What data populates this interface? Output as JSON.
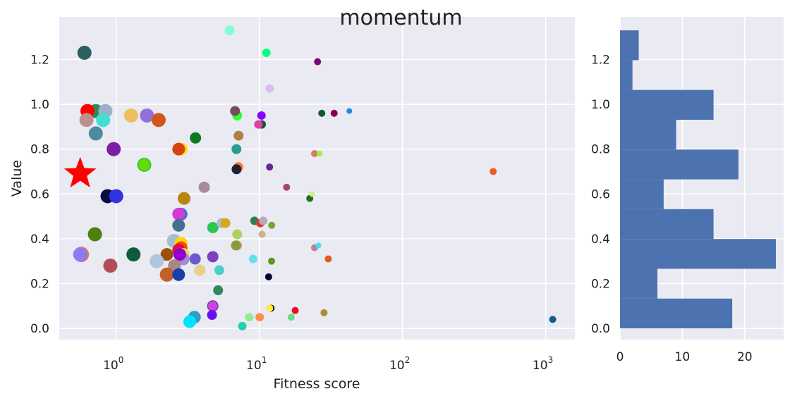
{
  "figure": {
    "title": "momentum"
  },
  "chart_data": [
    {
      "type": "scatter",
      "xlabel": "Fitness score",
      "ylabel": "Value",
      "xscale": "log",
      "xlim": [
        0.4,
        1600
      ],
      "ylim": [
        -0.05,
        1.39
      ],
      "xticks": [
        {
          "value": 1,
          "base": "10",
          "exp": "0"
        },
        {
          "value": 10,
          "base": "10",
          "exp": "1"
        },
        {
          "value": 100,
          "base": "10",
          "exp": "2"
        },
        {
          "value": 1000,
          "base": "10",
          "exp": "3"
        }
      ],
      "yticks": [
        {
          "value": 0.0,
          "label": "0.0"
        },
        {
          "value": 0.2,
          "label": "0.2"
        },
        {
          "value": 0.4,
          "label": "0.4"
        },
        {
          "value": 0.6,
          "label": "0.6"
        },
        {
          "value": 0.8,
          "label": "0.8"
        },
        {
          "value": 1.0,
          "label": "1.0"
        },
        {
          "value": 1.2,
          "label": "1.2"
        }
      ],
      "grid": true,
      "background": "#eaeaf2",
      "highlight": {
        "x": 0.56,
        "y": 0.69,
        "marker": "star",
        "color": "#ff0000"
      },
      "points": [
        {
          "x": 0.6,
          "y": 1.23,
          "s": 10,
          "c": "#2f5f5f"
        },
        {
          "x": 6.2,
          "y": 1.33,
          "s": 7,
          "c": "#7fffd4"
        },
        {
          "x": 11.2,
          "y": 1.23,
          "s": 6,
          "c": "#00ff7f"
        },
        {
          "x": 25.5,
          "y": 1.19,
          "s": 5,
          "c": "#800080"
        },
        {
          "x": 11.8,
          "y": 1.07,
          "s": 6,
          "c": "#d8bfef"
        },
        {
          "x": 0.72,
          "y": 0.97,
          "s": 10,
          "c": "#2e8b57"
        },
        {
          "x": 0.84,
          "y": 0.97,
          "s": 10,
          "c": "#9bb0cb"
        },
        {
          "x": 0.63,
          "y": 0.97,
          "s": 10,
          "c": "#ff0000"
        },
        {
          "x": 0.62,
          "y": 0.93,
          "s": 10,
          "c": "#bc8f8f"
        },
        {
          "x": 0.81,
          "y": 0.93,
          "s": 10,
          "c": "#40e0d0"
        },
        {
          "x": 0.72,
          "y": 0.87,
          "s": 10,
          "c": "#4c8aa0"
        },
        {
          "x": 1.27,
          "y": 0.95,
          "s": 10,
          "c": "#f0be60"
        },
        {
          "x": 1.64,
          "y": 0.95,
          "s": 10,
          "c": "#9370db"
        },
        {
          "x": 1.98,
          "y": 0.93,
          "s": 10,
          "c": "#d2561c"
        },
        {
          "x": 0.96,
          "y": 0.8,
          "s": 10,
          "c": "#7b1fa2"
        },
        {
          "x": 1.57,
          "y": 0.73,
          "s": 10,
          "c": "#32cd32"
        },
        {
          "x": 1.57,
          "y": 0.73,
          "s": 8,
          "c": "#66dd00"
        },
        {
          "x": 0.87,
          "y": 0.59,
          "s": 10,
          "c": "#0b0b45"
        },
        {
          "x": 1.0,
          "y": 0.59,
          "s": 10,
          "c": "#3232e0"
        },
        {
          "x": 0.71,
          "y": 0.42,
          "s": 10,
          "c": "#4f7f0f"
        },
        {
          "x": 0.57,
          "y": 0.33,
          "s": 11,
          "c": "#e8735a"
        },
        {
          "x": 0.56,
          "y": 0.33,
          "s": 10,
          "c": "#8a7cf5"
        },
        {
          "x": 0.91,
          "y": 0.28,
          "s": 10,
          "c": "#b24c5a"
        },
        {
          "x": 1.32,
          "y": 0.33,
          "s": 10,
          "c": "#0e5c3a"
        },
        {
          "x": 2.84,
          "y": 0.8,
          "s": 9,
          "c": "#ffd700"
        },
        {
          "x": 2.73,
          "y": 0.8,
          "s": 9,
          "c": "#d8420c"
        },
        {
          "x": 3.58,
          "y": 0.85,
          "s": 8,
          "c": "#0e7a1b"
        },
        {
          "x": 2.98,
          "y": 0.58,
          "s": 9,
          "c": "#b8860b"
        },
        {
          "x": 4.12,
          "y": 0.63,
          "s": 8,
          "c": "#a88a9f"
        },
        {
          "x": 2.84,
          "y": 0.51,
          "s": 9,
          "c": "#3d6fd4"
        },
        {
          "x": 2.73,
          "y": 0.51,
          "s": 9,
          "c": "#d63ad6"
        },
        {
          "x": 2.73,
          "y": 0.46,
          "s": 9,
          "c": "#447090"
        },
        {
          "x": 2.53,
          "y": 0.39,
          "s": 10,
          "c": "#a3bfcd"
        },
        {
          "x": 2.84,
          "y": 0.38,
          "s": 9,
          "c": "#ffd700"
        },
        {
          "x": 2.84,
          "y": 0.36,
          "s": 9,
          "c": "#ff4500"
        },
        {
          "x": 2.73,
          "y": 0.35,
          "s": 9,
          "c": "#dc143c"
        },
        {
          "x": 2.26,
          "y": 0.33,
          "s": 9,
          "c": "#9d5108"
        },
        {
          "x": 2.94,
          "y": 0.33,
          "s": 9,
          "c": "#f0e040"
        },
        {
          "x": 2.94,
          "y": 0.31,
          "s": 9,
          "c": "#a78bd0"
        },
        {
          "x": 2.78,
          "y": 0.33,
          "s": 9,
          "c": "#9400d3"
        },
        {
          "x": 3.56,
          "y": 0.31,
          "s": 8,
          "c": "#6a5acd"
        },
        {
          "x": 1.92,
          "y": 0.3,
          "s": 10,
          "c": "#b0c4de"
        },
        {
          "x": 2.55,
          "y": 0.28,
          "s": 9,
          "c": "#a78888"
        },
        {
          "x": 3.84,
          "y": 0.26,
          "s": 8,
          "c": "#e6d08a"
        },
        {
          "x": 2.26,
          "y": 0.24,
          "s": 10,
          "c": "#c0602b"
        },
        {
          "x": 2.73,
          "y": 0.24,
          "s": 9,
          "c": "#1a3ea8"
        },
        {
          "x": 3.52,
          "y": 0.05,
          "s": 9,
          "c": "#2f9ec0"
        },
        {
          "x": 3.26,
          "y": 0.03,
          "s": 9,
          "c": "#00e5ff"
        },
        {
          "x": 4.73,
          "y": 0.1,
          "s": 8,
          "c": "#3b3b8a"
        },
        {
          "x": 4.73,
          "y": 0.1,
          "s": 7,
          "c": "#cc44dd"
        },
        {
          "x": 4.67,
          "y": 0.06,
          "s": 7,
          "c": "#6610f2"
        },
        {
          "x": 5.15,
          "y": 0.17,
          "s": 7,
          "c": "#2e8b57"
        },
        {
          "x": 5.25,
          "y": 0.26,
          "s": 7,
          "c": "#48d1cc"
        },
        {
          "x": 4.73,
          "y": 0.32,
          "s": 8,
          "c": "#7b3fbf"
        },
        {
          "x": 4.73,
          "y": 0.45,
          "s": 8,
          "c": "#28c850"
        },
        {
          "x": 5.45,
          "y": 0.47,
          "s": 7,
          "c": "#aabbcc"
        },
        {
          "x": 5.79,
          "y": 0.47,
          "s": 7,
          "c": "#daa520"
        },
        {
          "x": 6.98,
          "y": 0.37,
          "s": 7,
          "c": "#e0a060"
        },
        {
          "x": 6.86,
          "y": 0.37,
          "s": 7,
          "c": "#8a9a40"
        },
        {
          "x": 7.0,
          "y": 0.42,
          "s": 7,
          "c": "#b0d060"
        },
        {
          "x": 7.13,
          "y": 0.72,
          "s": 7,
          "c": "#ff7f24"
        },
        {
          "x": 6.93,
          "y": 0.71,
          "s": 7,
          "c": "#1f1f2f"
        },
        {
          "x": 6.92,
          "y": 0.8,
          "s": 7,
          "c": "#2a9d8f"
        },
        {
          "x": 7.16,
          "y": 0.86,
          "s": 7,
          "c": "#b08040"
        },
        {
          "x": 7.0,
          "y": 0.95,
          "s": 7,
          "c": "#32ff32"
        },
        {
          "x": 6.76,
          "y": 0.97,
          "s": 7,
          "c": "#7a4a5a"
        },
        {
          "x": 10.35,
          "y": 0.95,
          "s": 6,
          "c": "#8a00ff"
        },
        {
          "x": 10.38,
          "y": 0.91,
          "s": 6,
          "c": "#1f4f2f"
        },
        {
          "x": 9.84,
          "y": 0.91,
          "s": 6,
          "c": "#e040a0"
        },
        {
          "x": 11.79,
          "y": 0.72,
          "s": 5,
          "c": "#6b238e"
        },
        {
          "x": 9.24,
          "y": 0.48,
          "s": 6,
          "c": "#2f7f4f"
        },
        {
          "x": 10.15,
          "y": 0.47,
          "s": 6,
          "c": "#d23f3f"
        },
        {
          "x": 10.64,
          "y": 0.48,
          "s": 6,
          "c": "#b8a8b8"
        },
        {
          "x": 12.2,
          "y": 0.46,
          "s": 5,
          "c": "#7ca33a"
        },
        {
          "x": 10.45,
          "y": 0.42,
          "s": 5,
          "c": "#c9b38c"
        },
        {
          "x": 9.04,
          "y": 0.31,
          "s": 6,
          "c": "#66e0e8"
        },
        {
          "x": 12.17,
          "y": 0.3,
          "s": 5,
          "c": "#5a9a20"
        },
        {
          "x": 11.61,
          "y": 0.23,
          "s": 5,
          "c": "#050535"
        },
        {
          "x": 8.5,
          "y": 0.05,
          "s": 6,
          "c": "#90ee90"
        },
        {
          "x": 7.6,
          "y": 0.01,
          "s": 6,
          "c": "#20d0b0"
        },
        {
          "x": 10.05,
          "y": 0.05,
          "s": 6,
          "c": "#ff8c50"
        },
        {
          "x": 12.07,
          "y": 0.09,
          "s": 5,
          "c": "#111111"
        },
        {
          "x": 11.8,
          "y": 0.09,
          "s": 5,
          "c": "#ffec40"
        },
        {
          "x": 16.7,
          "y": 0.05,
          "s": 5,
          "c": "#66dd88"
        },
        {
          "x": 17.8,
          "y": 0.08,
          "s": 5,
          "c": "#e81020"
        },
        {
          "x": 15.5,
          "y": 0.63,
          "s": 5,
          "c": "#a04a6a"
        },
        {
          "x": 22.5,
          "y": 0.58,
          "s": 5,
          "c": "#1e6e1e"
        },
        {
          "x": 23.3,
          "y": 0.6,
          "s": 4,
          "c": "#d0f080"
        },
        {
          "x": 24.3,
          "y": 0.36,
          "s": 5,
          "c": "#c08090"
        },
        {
          "x": 25.9,
          "y": 0.37,
          "s": 4,
          "c": "#40e0ff"
        },
        {
          "x": 24.3,
          "y": 0.78,
          "s": 5,
          "c": "#d08060"
        },
        {
          "x": 26.4,
          "y": 0.78,
          "s": 4,
          "c": "#a0f040"
        },
        {
          "x": 27.3,
          "y": 0.96,
          "s": 5,
          "c": "#0f5a2f"
        },
        {
          "x": 33.3,
          "y": 0.96,
          "s": 5,
          "c": "#8a0050"
        },
        {
          "x": 42.5,
          "y": 0.97,
          "s": 4,
          "c": "#1e88e5"
        },
        {
          "x": 30.3,
          "y": 0.31,
          "s": 5,
          "c": "#e05a20"
        },
        {
          "x": 28.3,
          "y": 0.07,
          "s": 5,
          "c": "#b08a30"
        },
        {
          "x": 430,
          "y": 0.7,
          "s": 5,
          "c": "#f05a28"
        },
        {
          "x": 1120,
          "y": 0.04,
          "s": 5,
          "c": "#0f5f8a"
        }
      ]
    },
    {
      "type": "bar",
      "orientation": "horizontal",
      "bin_edges": [
        0.0,
        0.133,
        0.266,
        0.399,
        0.532,
        0.665,
        0.798,
        0.931,
        1.064,
        1.197,
        1.33
      ],
      "values": [
        18,
        6,
        25,
        15,
        7,
        19,
        9,
        15,
        2,
        3
      ],
      "color": "#4c72b0",
      "xlim": [
        0,
        26.25
      ],
      "ylim": [
        -0.05,
        1.39
      ],
      "xticks": [
        {
          "value": 0,
          "label": "0"
        },
        {
          "value": 10,
          "label": "10"
        },
        {
          "value": 20,
          "label": "20"
        }
      ],
      "yticks": [
        {
          "value": 0.0,
          "label": "0.0"
        },
        {
          "value": 0.2,
          "label": "0.2"
        },
        {
          "value": 0.4,
          "label": "0.4"
        },
        {
          "value": 0.6,
          "label": "0.6"
        },
        {
          "value": 0.8,
          "label": "0.8"
        },
        {
          "value": 1.0,
          "label": "1.0"
        },
        {
          "value": 1.2,
          "label": "1.2"
        }
      ],
      "grid": true,
      "background": "#eaeaf2"
    }
  ]
}
